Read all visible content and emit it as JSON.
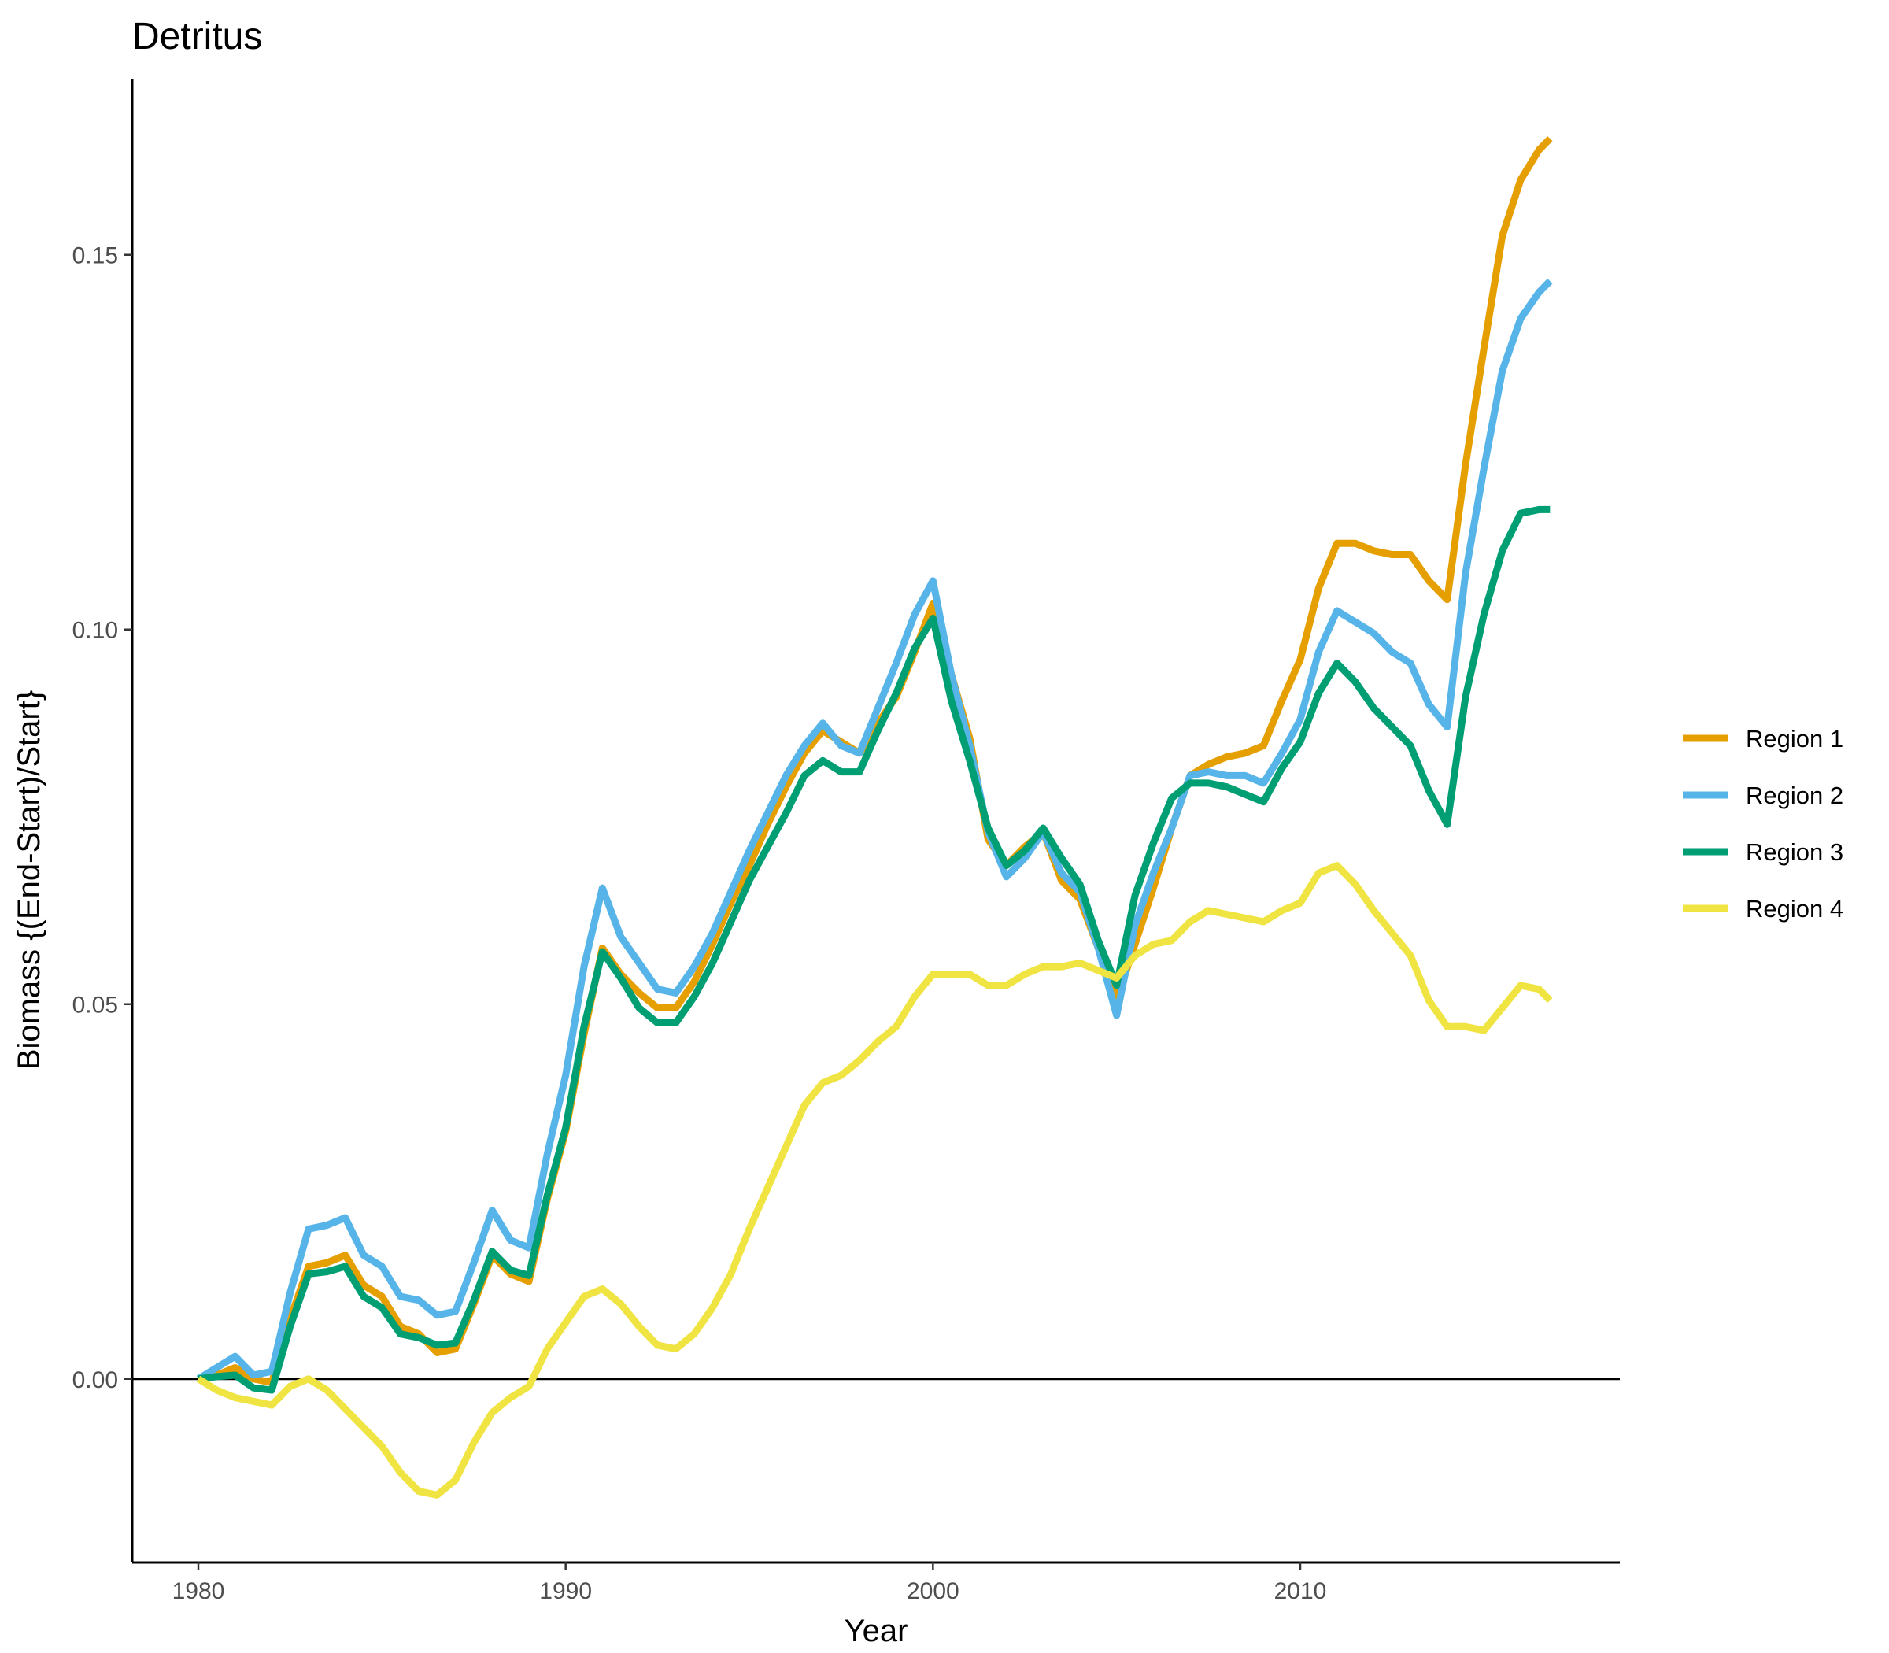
{
  "chart_data": {
    "type": "line",
    "title": "Detritus",
    "xlabel": "Year",
    "ylabel": "Biomass {(End-Start)/Start}",
    "xlim": [
      1978.2,
      2018.7
    ],
    "ylim": [
      -0.0245,
      0.1735
    ],
    "x_ticks": [
      1980,
      1990,
      2000,
      2010
    ],
    "x_tick_labels": [
      "1980",
      "1990",
      "2000",
      "2010"
    ],
    "y_ticks": [
      0.0,
      0.05,
      0.1,
      0.15
    ],
    "y_tick_labels": [
      "0.00",
      "0.05",
      "0.10",
      "0.15"
    ],
    "reference_line_y": 0,
    "grid": false,
    "legend_position": "right",
    "series": [
      {
        "name": "Region 1",
        "color": "#E69F00",
        "x": [
          1980,
          1980.5,
          1981,
          1981.5,
          1982,
          1982.5,
          1983,
          1983.5,
          1984,
          1984.5,
          1985,
          1985.5,
          1986,
          1986.5,
          1987,
          1987.5,
          1988,
          1988.5,
          1989,
          1989.5,
          1990,
          1990.5,
          1991,
          1991.5,
          1992,
          1992.5,
          1993,
          1993.5,
          1994,
          1994.5,
          1995,
          1995.5,
          1996,
          1996.5,
          1997,
          1997.5,
          1998,
          1998.5,
          1999,
          1999.5,
          2000,
          2000.5,
          2001,
          2001.5,
          2002,
          2002.5,
          2003,
          2003.5,
          2004,
          2004.5,
          2005,
          2005.5,
          2006,
          2006.5,
          2007,
          2007.5,
          2008,
          2008.5,
          2009,
          2009.5,
          2010,
          2010.5,
          2011,
          2011.5,
          2012,
          2012.5,
          2013,
          2013.5,
          2014,
          2014.5,
          2015,
          2015.5,
          2016,
          2016.5,
          2016.8
        ],
        "values": [
          0.0,
          0.0005,
          0.0015,
          0.0,
          -0.0005,
          0.008,
          0.015,
          0.0155,
          0.0165,
          0.0125,
          0.011,
          0.007,
          0.006,
          0.0035,
          0.004,
          0.01,
          0.0165,
          0.014,
          0.013,
          0.024,
          0.033,
          0.046,
          0.0575,
          0.054,
          0.0515,
          0.0495,
          0.0495,
          0.053,
          0.058,
          0.0635,
          0.0685,
          0.074,
          0.079,
          0.0835,
          0.0865,
          0.085,
          0.0835,
          0.0875,
          0.091,
          0.097,
          0.1035,
          0.094,
          0.0855,
          0.072,
          0.0685,
          0.071,
          0.073,
          0.0665,
          0.064,
          0.0575,
          0.0505,
          0.058,
          0.0655,
          0.0735,
          0.0805,
          0.082,
          0.083,
          0.0835,
          0.0845,
          0.0905,
          0.096,
          0.1055,
          0.1115,
          0.1115,
          0.1105,
          0.11,
          0.11,
          0.1065,
          0.104,
          0.122,
          0.1375,
          0.1525,
          0.16,
          0.164,
          0.1655
        ]
      },
      {
        "name": "Region 2",
        "color": "#56B4E9",
        "x": [
          1980,
          1980.5,
          1981,
          1981.5,
          1982,
          1982.5,
          1983,
          1983.5,
          1984,
          1984.5,
          1985,
          1985.5,
          1986,
          1986.5,
          1987,
          1987.5,
          1988,
          1988.5,
          1989,
          1989.5,
          1990,
          1990.5,
          1991,
          1991.5,
          1992,
          1992.5,
          1993,
          1993.5,
          1994,
          1994.5,
          1995,
          1995.5,
          1996,
          1996.5,
          1997,
          1997.5,
          1998,
          1998.5,
          1999,
          1999.5,
          2000,
          2000.5,
          2001,
          2001.5,
          2002,
          2002.5,
          2003,
          2003.5,
          2004,
          2004.5,
          2005,
          2005.5,
          2006,
          2006.5,
          2007,
          2007.5,
          2008,
          2008.5,
          2009,
          2009.5,
          2010,
          2010.5,
          2011,
          2011.5,
          2012,
          2012.5,
          2013,
          2013.5,
          2014,
          2014.5,
          2015,
          2015.5,
          2016,
          2016.5,
          2016.8
        ],
        "values": [
          0.0,
          0.0015,
          0.003,
          0.0005,
          0.001,
          0.0115,
          0.02,
          0.0205,
          0.0215,
          0.0165,
          0.015,
          0.011,
          0.0105,
          0.0085,
          0.009,
          0.0155,
          0.0225,
          0.0185,
          0.0175,
          0.03,
          0.0405,
          0.055,
          0.0655,
          0.059,
          0.0555,
          0.052,
          0.0515,
          0.055,
          0.0595,
          0.065,
          0.0705,
          0.0755,
          0.0805,
          0.0845,
          0.0875,
          0.0845,
          0.0835,
          0.0895,
          0.0955,
          0.102,
          0.1065,
          0.094,
          0.0845,
          0.073,
          0.067,
          0.0695,
          0.073,
          0.0675,
          0.065,
          0.0575,
          0.0485,
          0.0605,
          0.0675,
          0.0735,
          0.0805,
          0.081,
          0.0805,
          0.0805,
          0.0795,
          0.0835,
          0.088,
          0.097,
          0.1025,
          0.101,
          0.0995,
          0.097,
          0.0955,
          0.09,
          0.087,
          0.1075,
          0.1215,
          0.1345,
          0.1415,
          0.145,
          0.1465
        ]
      },
      {
        "name": "Region 3",
        "color": "#009E73",
        "x": [
          1980,
          1980.5,
          1981,
          1981.5,
          1982,
          1982.5,
          1983,
          1983.5,
          1984,
          1984.5,
          1985,
          1985.5,
          1986,
          1986.5,
          1987,
          1987.5,
          1988,
          1988.5,
          1989,
          1989.5,
          1990,
          1990.5,
          1991,
          1991.5,
          1992,
          1992.5,
          1993,
          1993.5,
          1994,
          1994.5,
          1995,
          1995.5,
          1996,
          1996.5,
          1997,
          1997.5,
          1998,
          1998.5,
          1999,
          1999.5,
          2000,
          2000.5,
          2001,
          2001.5,
          2002,
          2002.5,
          2003,
          2003.5,
          2004,
          2004.5,
          2005,
          2005.5,
          2006,
          2006.5,
          2007,
          2007.5,
          2008,
          2008.5,
          2009,
          2009.5,
          2010,
          2010.5,
          2011,
          2011.5,
          2012,
          2012.5,
          2013,
          2013.5,
          2014,
          2014.5,
          2015,
          2015.5,
          2016,
          2016.5,
          2016.8
        ],
        "values": [
          0.0,
          0.0003,
          0.0005,
          -0.0012,
          -0.0015,
          0.007,
          0.014,
          0.0143,
          0.015,
          0.011,
          0.0095,
          0.006,
          0.0055,
          0.0045,
          0.0048,
          0.0105,
          0.017,
          0.0145,
          0.0138,
          0.0245,
          0.0335,
          0.047,
          0.057,
          0.0535,
          0.0495,
          0.0475,
          0.0475,
          0.051,
          0.0555,
          0.061,
          0.0665,
          0.071,
          0.0755,
          0.0805,
          0.0825,
          0.081,
          0.081,
          0.0865,
          0.0915,
          0.0975,
          0.1015,
          0.0905,
          0.0825,
          0.0735,
          0.0685,
          0.0705,
          0.0735,
          0.0695,
          0.066,
          0.0585,
          0.0525,
          0.0645,
          0.0715,
          0.0775,
          0.0795,
          0.0795,
          0.079,
          0.078,
          0.077,
          0.0815,
          0.085,
          0.0915,
          0.0955,
          0.093,
          0.0895,
          0.087,
          0.0845,
          0.0785,
          0.074,
          0.091,
          0.102,
          0.1105,
          0.1155,
          0.116,
          0.116
        ]
      },
      {
        "name": "Region 4",
        "color": "#F0E442",
        "x": [
          1980,
          1980.5,
          1981,
          1981.5,
          1982,
          1982.5,
          1983,
          1983.5,
          1984,
          1984.5,
          1985,
          1985.5,
          1986,
          1986.5,
          1987,
          1987.5,
          1988,
          1988.5,
          1989,
          1989.5,
          1990,
          1990.5,
          1991,
          1991.5,
          1992,
          1992.5,
          1993,
          1993.5,
          1994,
          1994.5,
          1995,
          1995.5,
          1996,
          1996.5,
          1997,
          1997.5,
          1998,
          1998.5,
          1999,
          1999.5,
          2000,
          2000.5,
          2001,
          2001.5,
          2002,
          2002.5,
          2003,
          2003.5,
          2004,
          2004.5,
          2005,
          2005.5,
          2006,
          2006.5,
          2007,
          2007.5,
          2008,
          2008.5,
          2009,
          2009.5,
          2010,
          2010.5,
          2011,
          2011.5,
          2012,
          2012.5,
          2013,
          2013.5,
          2014,
          2014.5,
          2015,
          2015.5,
          2016,
          2016.5,
          2016.8
        ],
        "values": [
          0.0,
          -0.0015,
          -0.0025,
          -0.003,
          -0.0035,
          -0.001,
          0.0,
          -0.0015,
          -0.004,
          -0.0065,
          -0.009,
          -0.0125,
          -0.015,
          -0.0155,
          -0.0135,
          -0.0085,
          -0.0045,
          -0.0025,
          -0.001,
          0.004,
          0.0075,
          0.011,
          0.012,
          0.01,
          0.007,
          0.0045,
          0.004,
          0.006,
          0.0095,
          0.014,
          0.02,
          0.0255,
          0.031,
          0.0365,
          0.0395,
          0.0405,
          0.0425,
          0.045,
          0.047,
          0.051,
          0.054,
          0.054,
          0.054,
          0.0525,
          0.0525,
          0.054,
          0.055,
          0.055,
          0.0555,
          0.0545,
          0.0535,
          0.0565,
          0.058,
          0.0585,
          0.061,
          0.0625,
          0.062,
          0.0615,
          0.061,
          0.0625,
          0.0635,
          0.0675,
          0.0685,
          0.066,
          0.0625,
          0.0595,
          0.0565,
          0.0505,
          0.047,
          0.047,
          0.0465,
          0.0495,
          0.0525,
          0.052,
          0.0505
        ]
      }
    ]
  }
}
